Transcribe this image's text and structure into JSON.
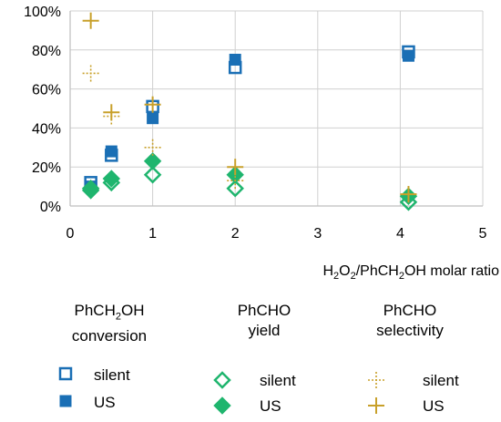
{
  "chart_data": {
    "type": "scatter",
    "xlabel_parts": [
      "H",
      "2",
      "O",
      "2",
      "/PhCH",
      "2",
      "OH molar ratio"
    ],
    "xlim": [
      0,
      5
    ],
    "ylim": [
      0,
      1
    ],
    "xticks": [
      "0",
      "1",
      "2",
      "3",
      "4",
      "5"
    ],
    "yticks": [
      "0%",
      "20%",
      "40%",
      "60%",
      "80%",
      "100%"
    ],
    "grid": true,
    "legend_position": "bottom",
    "groups": [
      {
        "title_parts": [
          "PhCH",
          "2",
          "OH",
          "conversion"
        ]
      },
      {
        "title_parts": [
          "PhCHO",
          "yield"
        ]
      },
      {
        "title_parts": [
          "PhCHO",
          "selectivity"
        ]
      }
    ],
    "series": [
      {
        "name": "silent",
        "group": 0,
        "marker": "square-open",
        "color": "#1a6fb5",
        "points": [
          [
            0.25,
            0.12
          ],
          [
            0.5,
            0.26
          ],
          [
            1.0,
            0.51
          ],
          [
            2.0,
            0.71
          ],
          [
            4.1,
            0.79
          ]
        ]
      },
      {
        "name": "US",
        "group": 0,
        "marker": "square-filled",
        "color": "#1a6fb5",
        "points": [
          [
            0.25,
            0.1
          ],
          [
            0.5,
            0.28
          ],
          [
            1.0,
            0.45
          ],
          [
            2.0,
            0.75
          ],
          [
            4.1,
            0.77
          ]
        ]
      },
      {
        "name": "silent",
        "group": 1,
        "marker": "diamond-open",
        "color": "#1fb56e",
        "points": [
          [
            0.25,
            0.09
          ],
          [
            0.5,
            0.12
          ],
          [
            1.0,
            0.16
          ],
          [
            2.0,
            0.09
          ],
          [
            4.1,
            0.02
          ]
        ]
      },
      {
        "name": "US",
        "group": 1,
        "marker": "diamond-filled",
        "color": "#1fb56e",
        "points": [
          [
            0.25,
            0.08
          ],
          [
            0.5,
            0.14
          ],
          [
            1.0,
            0.23
          ],
          [
            2.0,
            0.16
          ],
          [
            4.1,
            0.05
          ]
        ]
      },
      {
        "name": "silent",
        "group": 2,
        "marker": "plus-dotted",
        "color": "#c8a02a",
        "points": [
          [
            0.25,
            0.68
          ],
          [
            0.5,
            0.46
          ],
          [
            1.0,
            0.3
          ],
          [
            2.0,
            0.13
          ],
          [
            4.1,
            0.06
          ]
        ]
      },
      {
        "name": "US",
        "group": 2,
        "marker": "plus",
        "color": "#c8a02a",
        "points": [
          [
            0.25,
            0.95
          ],
          [
            0.5,
            0.48
          ],
          [
            1.0,
            0.52
          ],
          [
            2.0,
            0.2
          ],
          [
            4.1,
            0.06
          ]
        ]
      }
    ]
  }
}
